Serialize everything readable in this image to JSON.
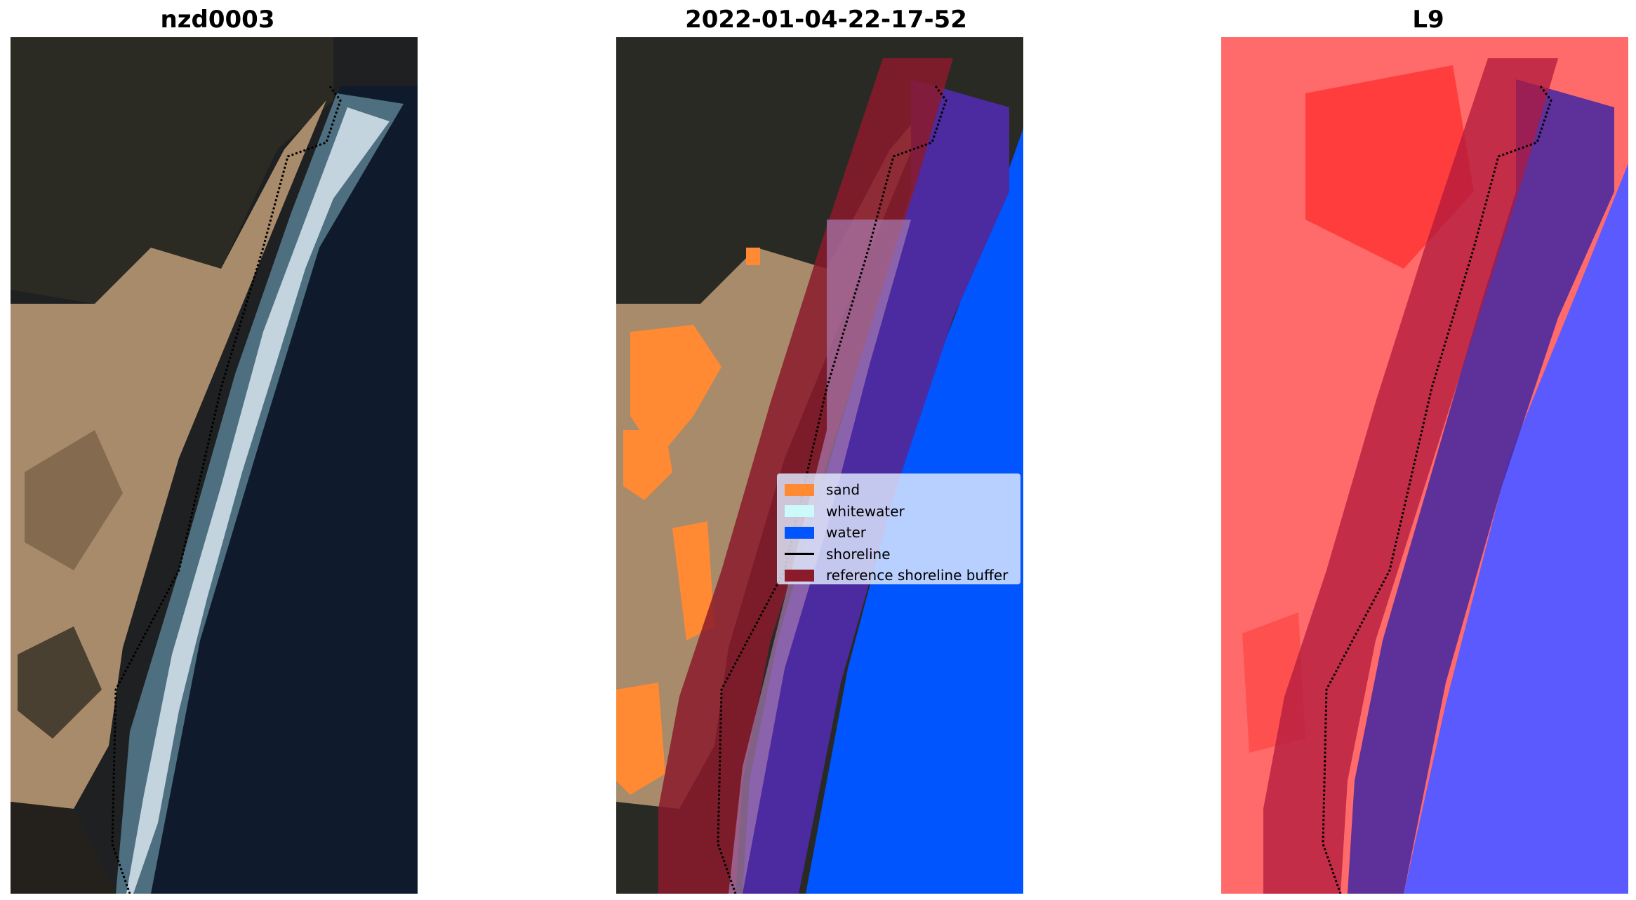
{
  "figure": {
    "panels": [
      {
        "title": "nzd0003"
      },
      {
        "title": "2022-01-04-22-17-52"
      },
      {
        "title": "L9"
      }
    ]
  },
  "legend": {
    "items": [
      {
        "label": "sand",
        "kind": "patch",
        "color": "#ff8a33"
      },
      {
        "label": "whitewater",
        "kind": "patch",
        "color": "#ccfafa"
      },
      {
        "label": "water",
        "kind": "patch",
        "color": "#0055ff"
      },
      {
        "label": "shoreline",
        "kind": "line",
        "color": "#000000"
      },
      {
        "label": "reference shoreline buffer",
        "kind": "patch",
        "color": "#8b1a2b"
      }
    ]
  },
  "colors": {
    "sand_land": "#a98966",
    "dark_vegetation": "#2a2a24",
    "ocean_dark": "#0e1a2b",
    "water_class": "#0055ff",
    "buffer_red": "#8b1a2b",
    "buffer_over_water": "#4c2aa0",
    "index_red": "#ff5a5a",
    "index_blue": "#5a5aff"
  }
}
